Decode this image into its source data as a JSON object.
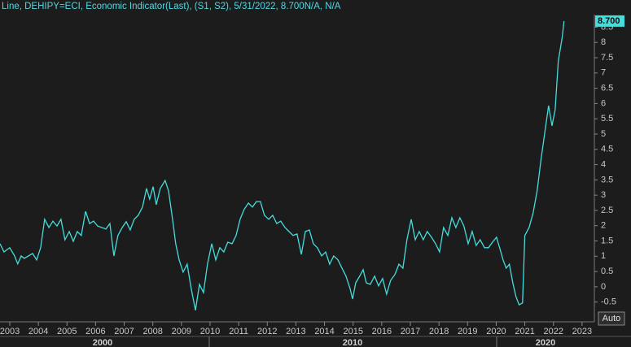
{
  "chart_data": {
    "type": "line",
    "title": "Line, DEHIPY=ECI, Economic Indicator(Last), (S1, S2), 5/31/2022, 8.700N/A, N/A",
    "x": [
      2002.66,
      2002.8,
      2003.0,
      2003.17,
      2003.28,
      2003.4,
      2003.51,
      2003.8,
      2003.94,
      2004.08,
      2004.22,
      2004.37,
      2004.51,
      2004.65,
      2004.79,
      2004.93,
      2005.08,
      2005.22,
      2005.36,
      2005.5,
      2005.65,
      2005.79,
      2005.93,
      2006.07,
      2006.36,
      2006.5,
      2006.64,
      2006.78,
      2006.93,
      2007.07,
      2007.21,
      2007.35,
      2007.49,
      2007.64,
      2007.78,
      2007.89,
      2008.01,
      2008.12,
      2008.26,
      2008.43,
      2008.55,
      2008.69,
      2008.8,
      2008.92,
      2009.06,
      2009.2,
      2009.34,
      2009.49,
      2009.63,
      2009.77,
      2009.91,
      2010.06,
      2010.2,
      2010.34,
      2010.48,
      2010.62,
      2010.77,
      2010.91,
      2011.05,
      2011.19,
      2011.34,
      2011.48,
      2011.62,
      2011.76,
      2011.9,
      2012.05,
      2012.19,
      2012.33,
      2012.47,
      2012.62,
      2012.76,
      2012.9,
      2013.04,
      2013.19,
      2013.33,
      2013.47,
      2013.61,
      2013.75,
      2013.9,
      2014.04,
      2014.18,
      2014.32,
      2014.47,
      2014.61,
      2014.75,
      2014.89,
      2014.98,
      2015.09,
      2015.23,
      2015.35,
      2015.46,
      2015.6,
      2015.75,
      2015.89,
      2016.03,
      2016.17,
      2016.31,
      2016.46,
      2016.6,
      2016.74,
      2016.88,
      2017.03,
      2017.17,
      2017.31,
      2017.45,
      2017.59,
      2017.74,
      2017.88,
      2018.02,
      2018.16,
      2018.31,
      2018.45,
      2018.59,
      2018.73,
      2018.87,
      2019.02,
      2019.16,
      2019.3,
      2019.44,
      2019.59,
      2019.73,
      2019.87,
      2020.01,
      2020.12,
      2020.24,
      2020.35,
      2020.46,
      2020.58,
      2020.69,
      2020.8,
      2020.92,
      2021.0,
      2021.15,
      2021.29,
      2021.43,
      2021.57,
      2021.71,
      2021.83,
      2021.95,
      2022.06,
      2022.17,
      2022.31,
      2022.37
    ],
    "series": [
      {
        "name": "DEHIPY=ECI",
        "color": "#45dcdc",
        "values": [
          1.41,
          1.14,
          1.28,
          1.01,
          0.75,
          1.01,
          0.93,
          1.09,
          0.88,
          1.28,
          2.21,
          1.94,
          2.15,
          1.99,
          2.21,
          1.54,
          1.81,
          1.49,
          1.81,
          1.68,
          2.47,
          2.07,
          2.15,
          1.99,
          1.89,
          2.07,
          1.01,
          1.68,
          1.94,
          2.13,
          1.86,
          2.21,
          2.34,
          2.61,
          3.22,
          2.87,
          3.28,
          2.69,
          3.22,
          3.48,
          3.14,
          2.21,
          1.41,
          0.88,
          0.48,
          0.74,
          -0.05,
          -0.77,
          0.08,
          -0.19,
          0.74,
          1.41,
          0.88,
          1.28,
          1.14,
          1.46,
          1.41,
          1.68,
          2.21,
          2.53,
          2.74,
          2.61,
          2.79,
          2.79,
          2.34,
          2.21,
          2.34,
          2.07,
          2.15,
          1.94,
          1.81,
          1.68,
          1.73,
          1.06,
          1.81,
          1.86,
          1.41,
          1.28,
          1.01,
          1.14,
          0.74,
          1.01,
          0.88,
          0.61,
          0.35,
          -0.05,
          -0.4,
          0.13,
          0.35,
          0.56,
          0.13,
          0.08,
          0.35,
          0.03,
          0.27,
          -0.24,
          0.21,
          0.4,
          0.74,
          0.61,
          1.54,
          2.21,
          1.54,
          1.81,
          1.54,
          1.81,
          1.62,
          1.41,
          1.14,
          1.94,
          1.68,
          2.26,
          1.94,
          2.26,
          1.99,
          1.41,
          1.81,
          1.35,
          1.54,
          1.28,
          1.28,
          1.46,
          1.62,
          1.28,
          0.88,
          0.61,
          0.74,
          0.13,
          -0.32,
          -0.59,
          -0.53,
          1.68,
          1.94,
          2.42,
          3.14,
          4.2,
          5.13,
          5.93,
          5.27,
          5.8,
          7.39,
          8.19,
          8.7
        ]
      }
    ],
    "last_value_label": "8.700",
    "xlim": [
      2002.66,
      2023.43
    ],
    "xticks": [
      2003,
      2004,
      2005,
      2006,
      2007,
      2008,
      2009,
      2010,
      2011,
      2012,
      2013,
      2014,
      2015,
      2016,
      2017,
      2018,
      2019,
      2020,
      2021,
      2022,
      2023
    ],
    "ylim": [
      -1.12,
      8.91
    ],
    "yticks": [
      -0.5,
      0,
      0.5,
      1,
      1.5,
      2,
      2.5,
      3,
      3.5,
      4,
      4.5,
      5,
      5.5,
      6,
      6.5,
      7,
      7.5,
      8,
      8.5
    ],
    "decade_labels": [
      "2000",
      "2010",
      "2020"
    ],
    "grid": false,
    "auto_button": "Auto"
  }
}
